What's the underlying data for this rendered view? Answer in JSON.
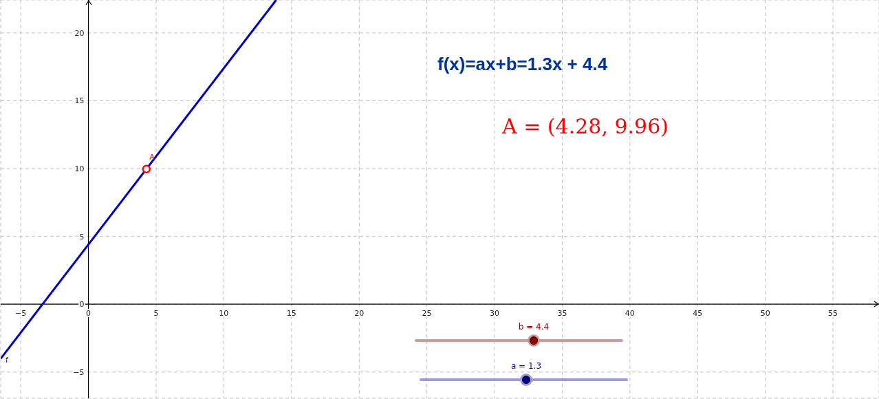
{
  "chart_data": {
    "type": "line",
    "series": [
      {
        "name": "f",
        "color": "#0000cc",
        "marker": "none",
        "x": [
          -6.48,
          13.87
        ],
        "values": [
          -4.02,
          22.43
        ]
      },
      {
        "name": "A",
        "type": "scatter",
        "color": "#ff0000",
        "marker": "circle",
        "x": [
          4.28
        ],
        "values": [
          9.96
        ]
      }
    ],
    "xlim": [
      -6.48,
      58.4
    ],
    "ylim": [
      -6.94,
      22.43
    ],
    "xticks": [
      -5,
      0,
      5,
      10,
      15,
      20,
      25,
      30,
      35,
      40,
      45,
      50,
      55
    ],
    "yticks": [
      -5,
      0,
      5,
      10,
      15,
      20
    ],
    "grid": true,
    "legend": false,
    "line_style": "solid",
    "annotations": [
      "f(x)=ax+b=1.3x + 4.4",
      "A = (4.28, 9.96)",
      "b = 4.4",
      "a = 1.3"
    ]
  }
}
